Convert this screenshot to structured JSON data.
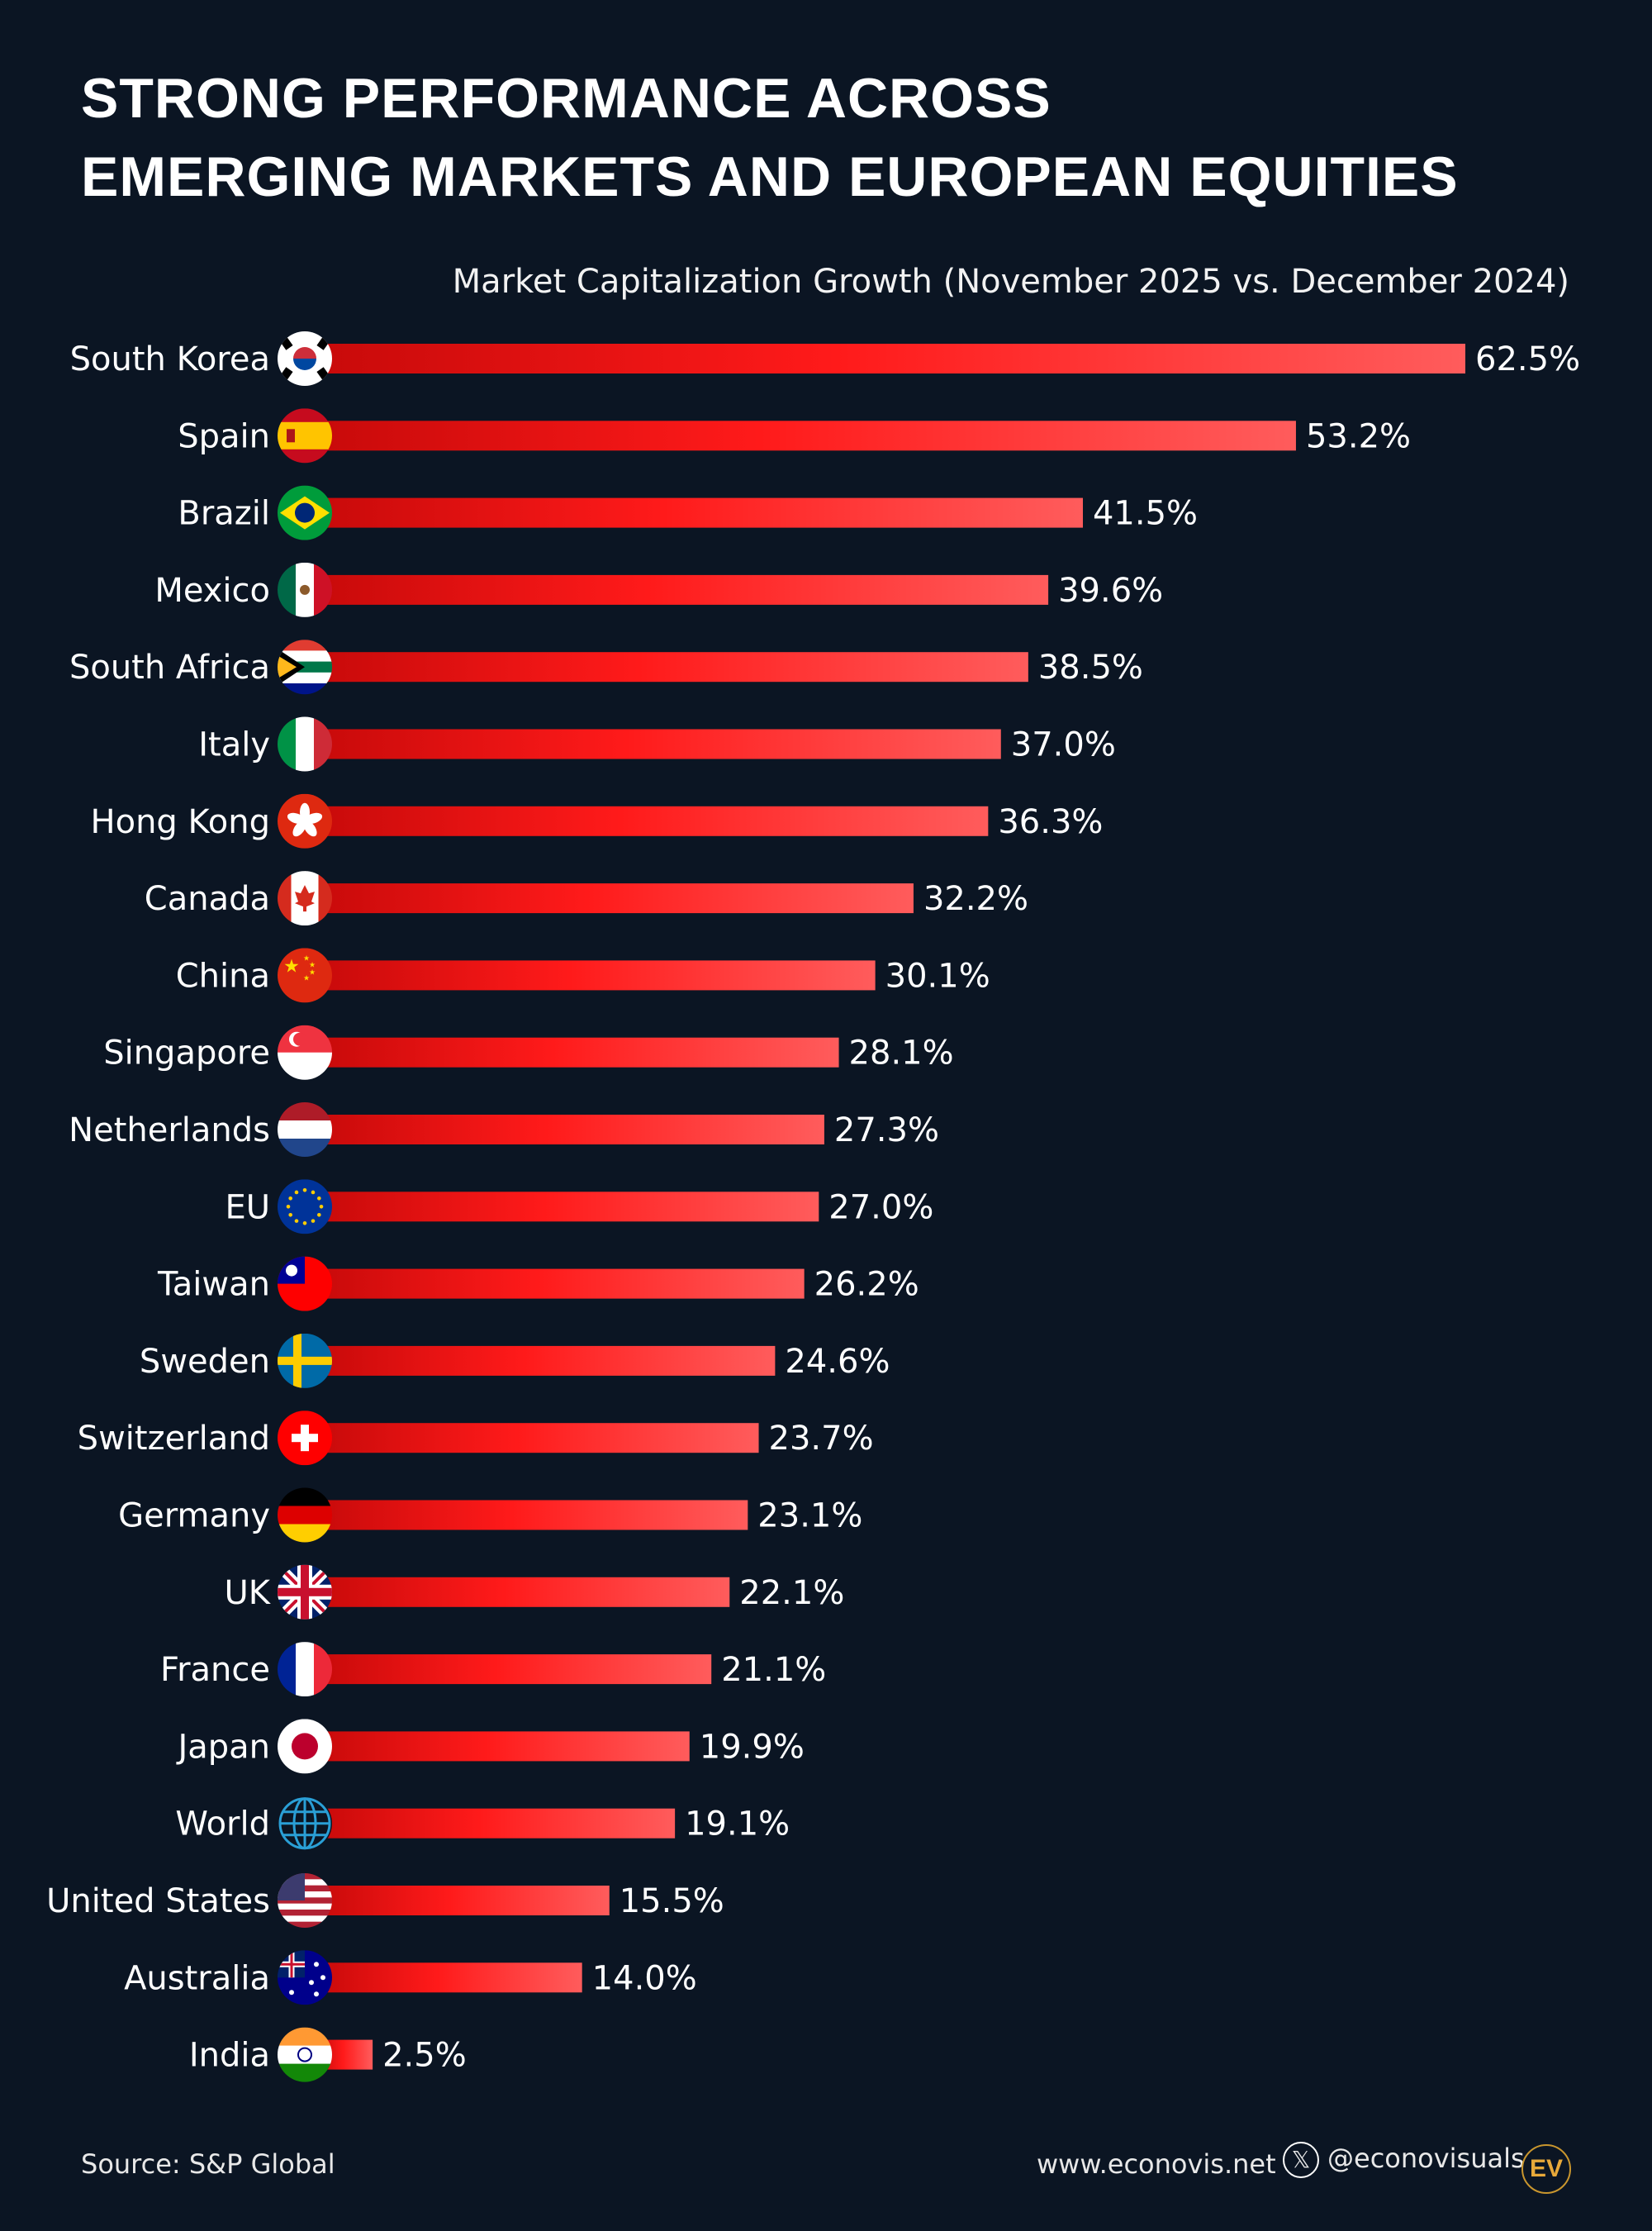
{
  "title_lines": [
    "STRONG PERFORMANCE ACROSS",
    "EMERGING MARKETS AND EUROPEAN EQUITIES"
  ],
  "chart_data": {
    "type": "bar",
    "orientation": "horizontal",
    "title": "Market Capitalization Growth (November 2025 vs. December 2024)",
    "categories": [
      "South Korea",
      "Spain",
      "Brazil",
      "Mexico",
      "South Africa",
      "Italy",
      "Hong Kong",
      "Canada",
      "China",
      "Singapore",
      "Netherlands",
      "EU",
      "Taiwan",
      "Sweden",
      "Switzerland",
      "Germany",
      "UK",
      "France",
      "Japan",
      "World",
      "United States",
      "Australia",
      "India"
    ],
    "values": [
      62.5,
      53.2,
      41.5,
      39.6,
      38.5,
      37.0,
      36.3,
      32.2,
      30.1,
      28.1,
      27.3,
      27.0,
      26.2,
      24.6,
      23.7,
      23.1,
      22.1,
      21.1,
      19.9,
      19.1,
      15.5,
      14.0,
      2.5
    ],
    "value_labels": [
      "62.5%",
      "53.2%",
      "41.5%",
      "39.6%",
      "38.5%",
      "37.0%",
      "36.3%",
      "32.2%",
      "30.1%",
      "28.1%",
      "27.3%",
      "27.0%",
      "26.2%",
      "24.6%",
      "23.7%",
      "23.1%",
      "22.1%",
      "21.1%",
      "19.9%",
      "19.1%",
      "15.5%",
      "14.0%",
      "2.5%"
    ],
    "flag_icons": [
      "flag-south-korea",
      "flag-spain",
      "flag-brazil",
      "flag-mexico",
      "flag-south-africa",
      "flag-italy",
      "flag-hong-kong",
      "flag-canada",
      "flag-china",
      "flag-singapore",
      "flag-netherlands",
      "flag-eu",
      "flag-taiwan",
      "flag-sweden",
      "flag-switzerland",
      "flag-germany",
      "flag-uk",
      "flag-france",
      "flag-japan",
      "globe",
      "flag-united-states",
      "flag-australia",
      "flag-india"
    ],
    "xlim": [
      0,
      62.5
    ],
    "grid": false,
    "bar_gradient": [
      "#c80a0a",
      "#ff1a1a",
      "#ff5c5c"
    ]
  },
  "footer": {
    "source": "Source: S&P Global",
    "website": "www.econovis.net",
    "social": "@econovisuals",
    "logo": "EV"
  },
  "colors": {
    "background": "#0b1523",
    "logo": "#e8a93a"
  }
}
